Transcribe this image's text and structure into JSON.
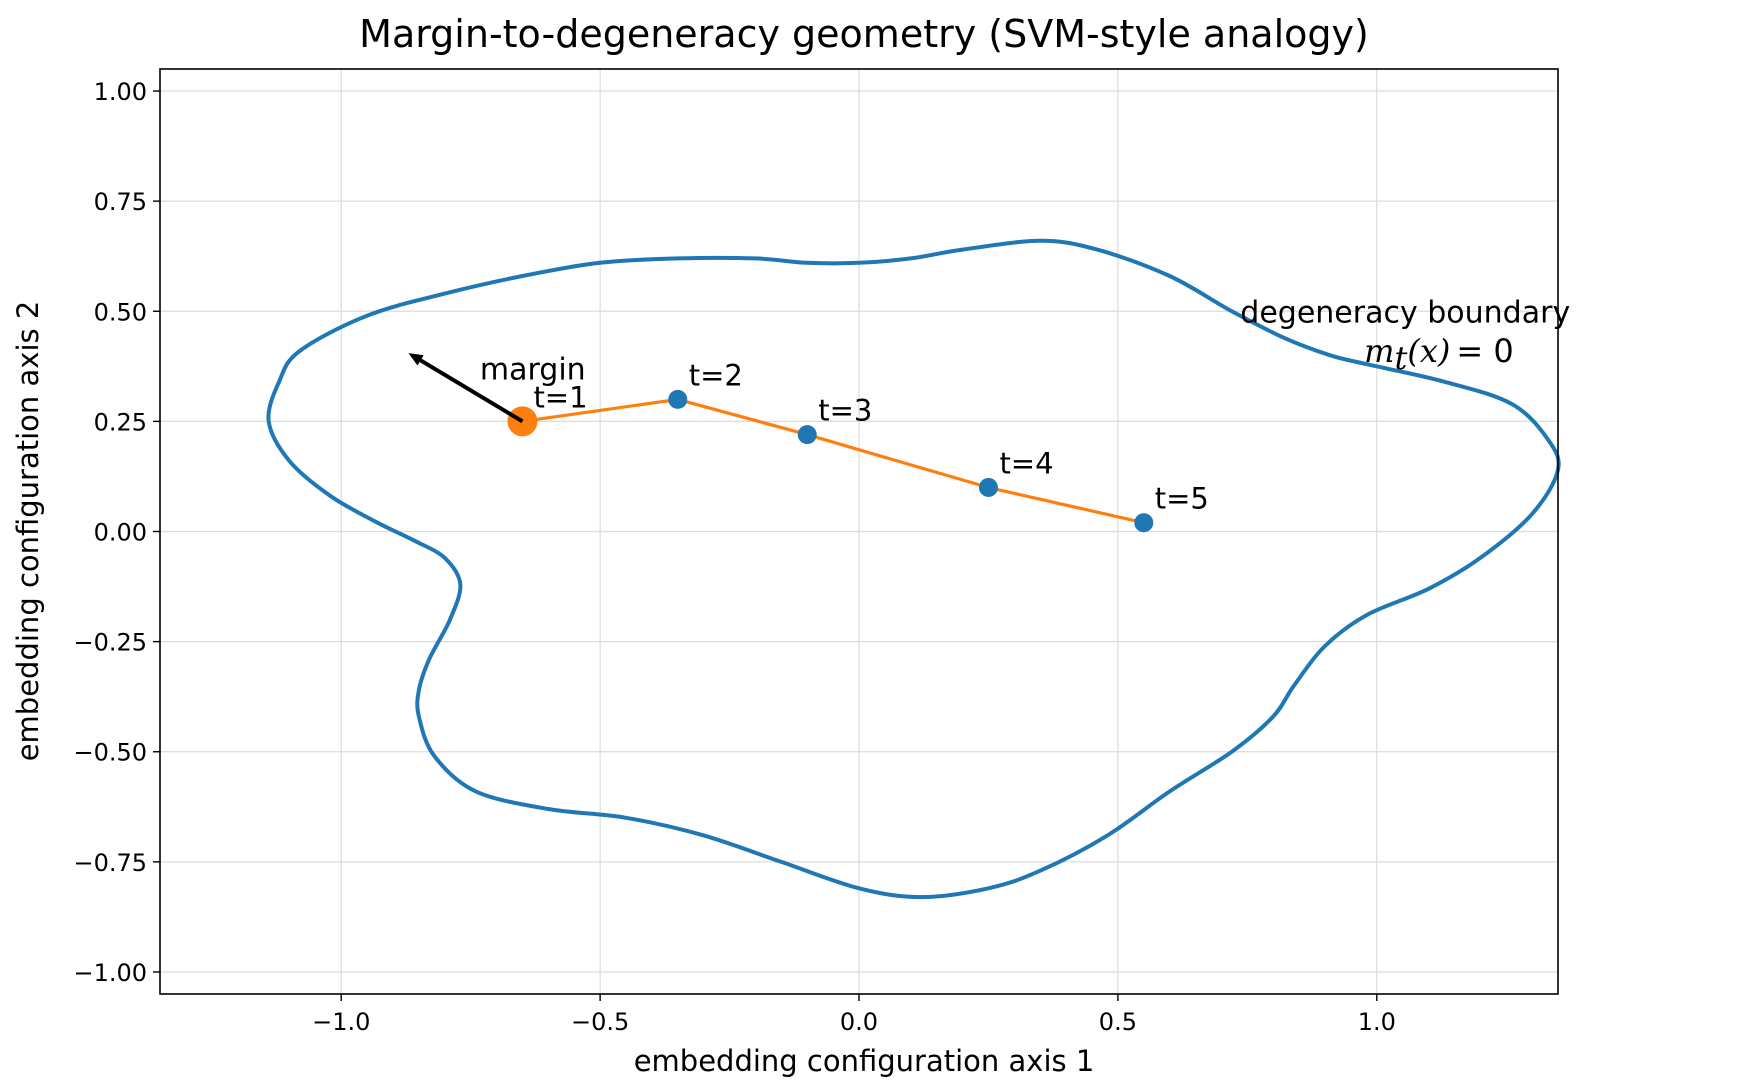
{
  "chart_data": {
    "type": "line",
    "title": "Margin-to-degeneracy geometry (SVM-style analogy)",
    "xlabel": "embedding configuration axis 1",
    "ylabel": "embedding configuration axis 2",
    "xlim": [
      -1.35,
      1.35
    ],
    "ylim": [
      -1.05,
      1.05
    ],
    "x_ticks": [
      -1.0,
      -0.5,
      0.0,
      0.5,
      1.0
    ],
    "x_tick_labels": [
      "−1.0",
      "−0.5",
      "0.0",
      "0.5",
      "1.0"
    ],
    "y_ticks": [
      -1.0,
      -0.75,
      -0.5,
      -0.25,
      0.0,
      0.25,
      0.5,
      0.75,
      1.0
    ],
    "y_tick_labels": [
      "−1.00",
      "−0.75",
      "−0.50",
      "−0.25",
      "0.00",
      "0.25",
      "0.50",
      "0.75",
      "1.00"
    ],
    "grid": true,
    "series": [
      {
        "role": "boundary",
        "color": "#1f77b4",
        "x": [
          1.35,
          1.33,
          1.26,
          1.13,
          0.98,
          0.91,
          0.82,
          0.72,
          0.6,
          0.46,
          0.35,
          0.2,
          0.1,
          0.0,
          -0.1,
          -0.2,
          -0.35,
          -0.5,
          -0.65,
          -0.8,
          -0.95,
          -1.08,
          -1.12,
          -1.14,
          -1.1,
          -1.02,
          -0.93,
          -0.86,
          -0.8,
          -0.77,
          -0.79,
          -0.83,
          -0.85,
          -0.85,
          -0.82,
          -0.74,
          -0.6,
          -0.45,
          -0.3,
          -0.15,
          0.0,
          0.12,
          0.25,
          0.35,
          0.48,
          0.6,
          0.72,
          0.8,
          0.84,
          0.9,
          0.98,
          1.1,
          1.2,
          1.3,
          1.35
        ],
        "y": [
          0.14,
          0.21,
          0.29,
          0.34,
          0.38,
          0.4,
          0.44,
          0.5,
          0.58,
          0.64,
          0.66,
          0.64,
          0.62,
          0.61,
          0.61,
          0.62,
          0.62,
          0.61,
          0.58,
          0.54,
          0.49,
          0.41,
          0.34,
          0.25,
          0.16,
          0.08,
          0.02,
          -0.02,
          -0.06,
          -0.12,
          -0.2,
          -0.29,
          -0.36,
          -0.42,
          -0.51,
          -0.59,
          -0.63,
          -0.65,
          -0.69,
          -0.75,
          -0.81,
          -0.83,
          -0.81,
          -0.77,
          -0.69,
          -0.59,
          -0.5,
          -0.42,
          -0.35,
          -0.26,
          -0.19,
          -0.13,
          -0.06,
          0.04,
          0.14
        ]
      },
      {
        "role": "trajectory",
        "color": "#ff7f0e",
        "marker_color": "#1f77b4",
        "x": [
          -0.65,
          -0.35,
          -0.1,
          0.25,
          0.55
        ],
        "y": [
          0.25,
          0.3,
          0.22,
          0.1,
          0.02
        ],
        "labels": [
          "t=1",
          "t=2",
          "t=3",
          "t=4",
          "t=5"
        ],
        "highlight_index": 0,
        "highlight_color": "#ff7f0e"
      }
    ],
    "arrow": {
      "from": [
        -0.65,
        0.25
      ],
      "to": [
        -0.87,
        0.405
      ],
      "color": "#000000"
    },
    "annotations": {
      "margin_label": "margin",
      "boundary_label": "degeneracy boundary",
      "boundary_equation": "m_t(x) = 0"
    }
  },
  "math": {
    "m": "m",
    "sub": "t",
    "x_part": "(x)",
    "rhs": "= 0"
  }
}
